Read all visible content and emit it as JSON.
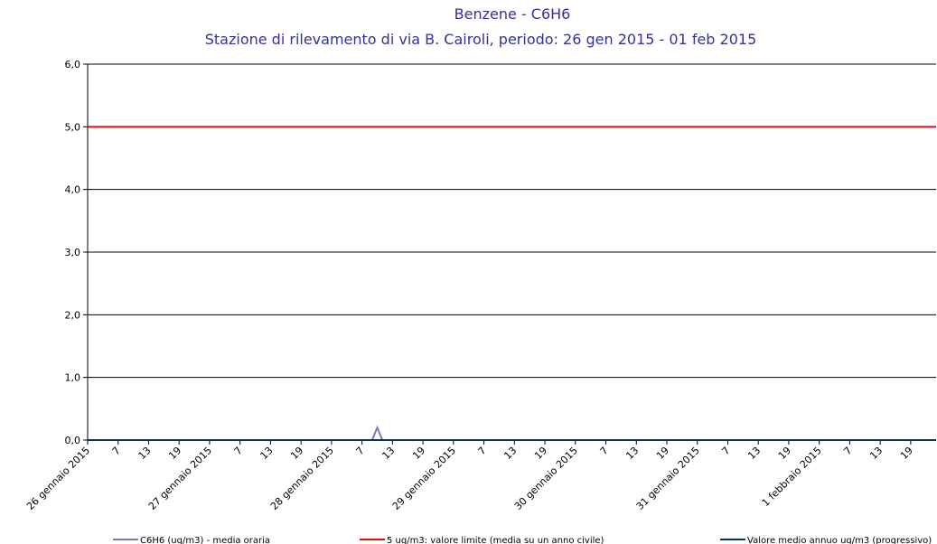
{
  "chart_data": {
    "type": "line",
    "title": "Benzene - C6H6",
    "subtitle": "Stazione di rilevamento di via B. Cairoli, periodo: 26 gen 2015 - 01 feb 2015",
    "xlim": [
      1,
      168
    ],
    "xticks": [
      {
        "value": 1,
        "label": "26 gennaio 2015"
      },
      {
        "value": 7,
        "label": "7"
      },
      {
        "value": 13,
        "label": "13"
      },
      {
        "value": 19,
        "label": "19"
      },
      {
        "value": 25,
        "label": "27 gennaio 2015"
      },
      {
        "value": 31,
        "label": "7"
      },
      {
        "value": 37,
        "label": "13"
      },
      {
        "value": 43,
        "label": "19"
      },
      {
        "value": 49,
        "label": "28 gennaio 2015"
      },
      {
        "value": 55,
        "label": "7"
      },
      {
        "value": 61,
        "label": "13"
      },
      {
        "value": 67,
        "label": "19"
      },
      {
        "value": 73,
        "label": "29 gennaio 2015"
      },
      {
        "value": 79,
        "label": "7"
      },
      {
        "value": 85,
        "label": "13"
      },
      {
        "value": 91,
        "label": "19"
      },
      {
        "value": 97,
        "label": "30 gennaio 2015"
      },
      {
        "value": 103,
        "label": "7"
      },
      {
        "value": 109,
        "label": "13"
      },
      {
        "value": 115,
        "label": "19"
      },
      {
        "value": 121,
        "label": "31 gennaio 2015"
      },
      {
        "value": 127,
        "label": "7"
      },
      {
        "value": 133,
        "label": "13"
      },
      {
        "value": 139,
        "label": "19"
      },
      {
        "value": 145,
        "label": "1 febbraio 2015"
      },
      {
        "value": 151,
        "label": "7"
      },
      {
        "value": 157,
        "label": "13"
      },
      {
        "value": 163,
        "label": "19"
      }
    ],
    "ylim": [
      0,
      6
    ],
    "yticks": [
      {
        "value": 0,
        "label": "0,0"
      },
      {
        "value": 1,
        "label": "1,0"
      },
      {
        "value": 2,
        "label": "2,0"
      },
      {
        "value": 3,
        "label": "3,0"
      },
      {
        "value": 4,
        "label": "4,0"
      },
      {
        "value": 5,
        "label": "5,0"
      },
      {
        "value": 6,
        "label": "6,0"
      }
    ],
    "grid": true,
    "series": [
      {
        "name": "C6H6 (ug/m3)  - media oraria",
        "color": "#7a7ab8",
        "x": [
          1,
          57,
          58,
          59,
          168
        ],
        "values": [
          0,
          0,
          0.2,
          0,
          0
        ]
      },
      {
        "name": "5 ug/m3: valore limite (media su un anno civile)",
        "color": "#e01010",
        "x": [
          1,
          168
        ],
        "values": [
          5,
          5
        ]
      },
      {
        "name": "Valore medio annuo ug/m3 (progressivo)",
        "color": "#003366",
        "x": [
          1,
          168
        ],
        "values": [
          0,
          0
        ]
      }
    ]
  }
}
